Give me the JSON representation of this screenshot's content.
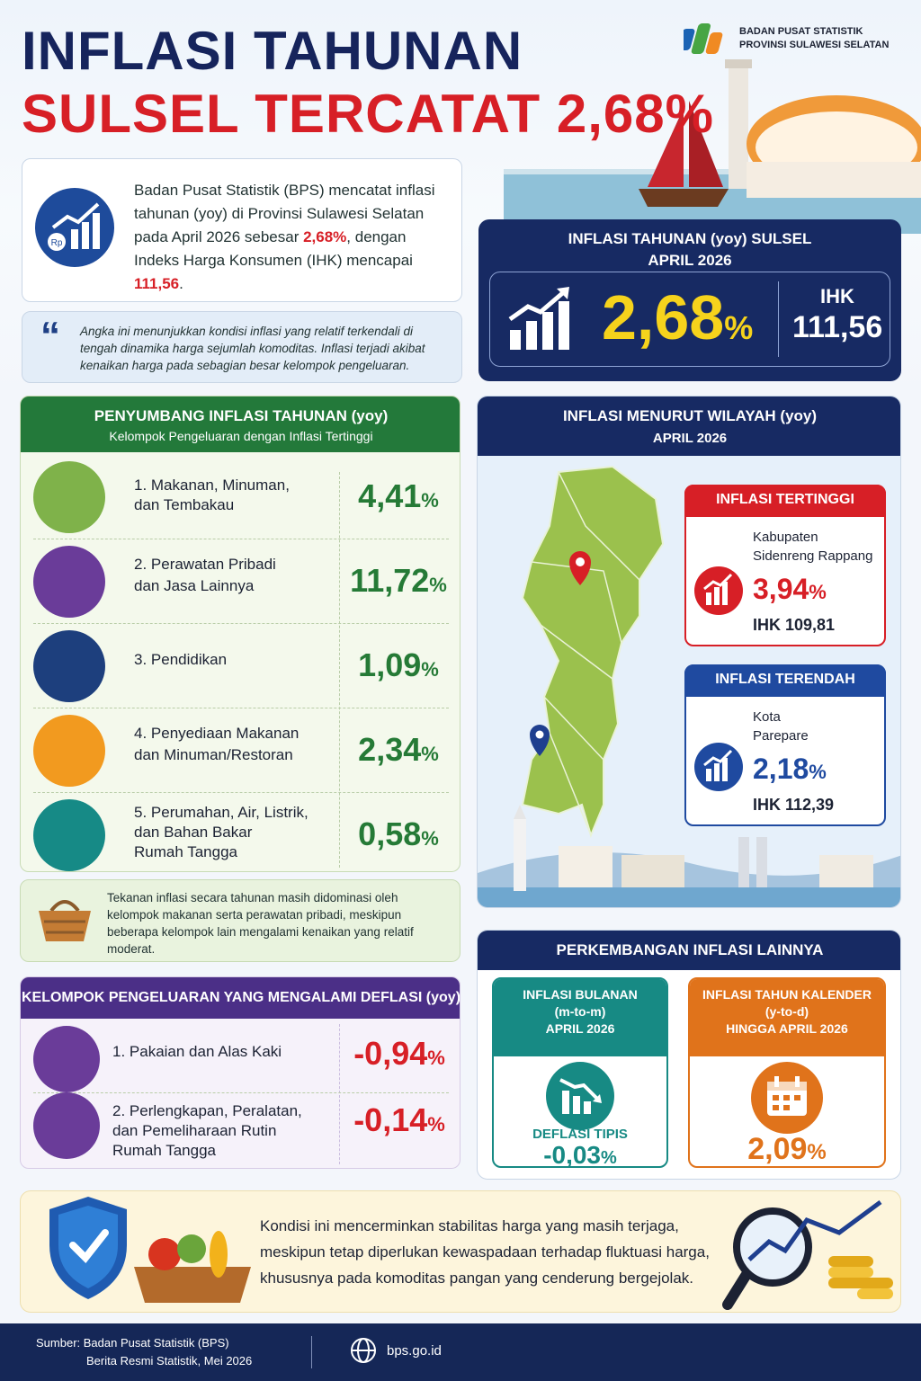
{
  "header": {
    "title_line1": "INFLASI TAHUNAN",
    "title_line2": "SULSEL TERCATAT 2,68%",
    "org_line1": "BADAN PUSAT STATISTIK",
    "org_line2": "PROVINSI SULAWESI SELATAN"
  },
  "intro": {
    "text_a": "Badan Pusat Statistik (BPS) mencatat inflasi tahunan (yoy) di Provinsi Sulawesi Selatan pada April 2026 sebesar ",
    "value_a": "2,68%",
    "text_b": ", dengan Indeks Harga Konsumen (IHK) mencapai ",
    "value_b": "111,56",
    "text_c": "."
  },
  "quote": {
    "text": "Angka ini menunjukkan kondisi inflasi yang relatif terkendali di tengah dinamika harga sejumlah komoditas. Inflasi terjadi akibat kenaikan harga pada sebagian besar kelompok pengeluaran."
  },
  "kpi": {
    "title": "INFLASI TAHUNAN (yoy) SULSEL",
    "period": "APRIL 2026",
    "value": "2,68",
    "unit": "%",
    "ihk_label": "IHK",
    "ihk_value": "111,56"
  },
  "contrib": {
    "title": "PENYUMBANG INFLASI TAHUNAN (yoy)",
    "subtitle": "Kelompok Pengeluaran dengan Inflasi Tertinggi",
    "items": [
      {
        "line1": "1. Makanan, Minuman,",
        "line2": "dan Tembakau",
        "line3": "",
        "value": "4,41",
        "color": "#7fb24a"
      },
      {
        "line1": "2. Perawatan Pribadi",
        "line2": "dan Jasa Lainnya",
        "line3": "",
        "value": "11,72",
        "color": "#6a3c99"
      },
      {
        "line1": "3. Pendidikan",
        "line2": "",
        "line3": "",
        "value": "1,09",
        "color": "#1d3f7d"
      },
      {
        "line1": "4. Penyediaan Makanan",
        "line2": "dan Minuman/Restoran",
        "line3": "",
        "value": "2,34",
        "color": "#f29a1f"
      },
      {
        "line1": "5. Perumahan, Air, Listrik,",
        "line2": "dan Bahan Bakar",
        "line3": "Rumah Tangga",
        "value": "0,58",
        "color": "#168a86"
      }
    ]
  },
  "note": {
    "text": "Tekanan inflasi secara tahunan masih didominasi oleh kelompok makanan serta perawatan pribadi, meskipun beberapa kelompok lain mengalami kenaikan yang relatif moderat."
  },
  "deflasi": {
    "title": "KELOMPOK PENGELUARAN YANG MENGALAMI DEFLASI (yoy)",
    "items": [
      {
        "line1": "1. Pakaian dan Alas Kaki",
        "line2": "",
        "line3": "",
        "value": "-0,94"
      },
      {
        "line1": "2. Perlengkapan, Peralatan,",
        "line2": "dan Pemeliharaan Rutin",
        "line3": "Rumah Tangga",
        "value": "-0,14"
      }
    ]
  },
  "wilayah": {
    "title": "INFLASI MENURUT WILAYAH (yoy)",
    "period": "APRIL 2026",
    "highest": {
      "label": "INFLASI TERTINGGI",
      "name1": "Kabupaten",
      "name2": "Sidenreng Rappang",
      "value": "3,94",
      "ihk": "IHK 109,81",
      "color": "#d71f26"
    },
    "lowest": {
      "label": "INFLASI TERENDAH",
      "name1": "Kota",
      "name2": "Parepare",
      "value": "2,18",
      "ihk": "IHK 112,39",
      "color": "#1f4aa0"
    }
  },
  "lainnya": {
    "title": "PERKEMBANGAN INFLASI LAINNYA",
    "mtm": {
      "l1": "INFLASI BULANAN",
      "l2": "(m-to-m)",
      "l3": "APRIL 2026",
      "status": "DEFLASI TIPIS",
      "value": "-0,03",
      "color": "#178a84"
    },
    "ytd": {
      "l1": "INFLASI TAHUN KALENDER",
      "l2": "(y-to-d)",
      "l3": "HINGGA APRIL 2026",
      "value": "2,09",
      "color": "#e0731b"
    }
  },
  "closing": {
    "text": "Kondisi ini mencerminkan stabilitas harga yang masih terjaga, meskipun tetap diperlukan kewaspadaan terhadap fluktuasi harga, khususnya pada komoditas pangan yang cenderung bergejolak."
  },
  "footer": {
    "source_line1": "Sumber: Badan Pusat Statistik (BPS)",
    "source_line2": "Berita Resmi Statistik, Mei 2026",
    "website": "bps.go.id"
  },
  "pct": "%"
}
